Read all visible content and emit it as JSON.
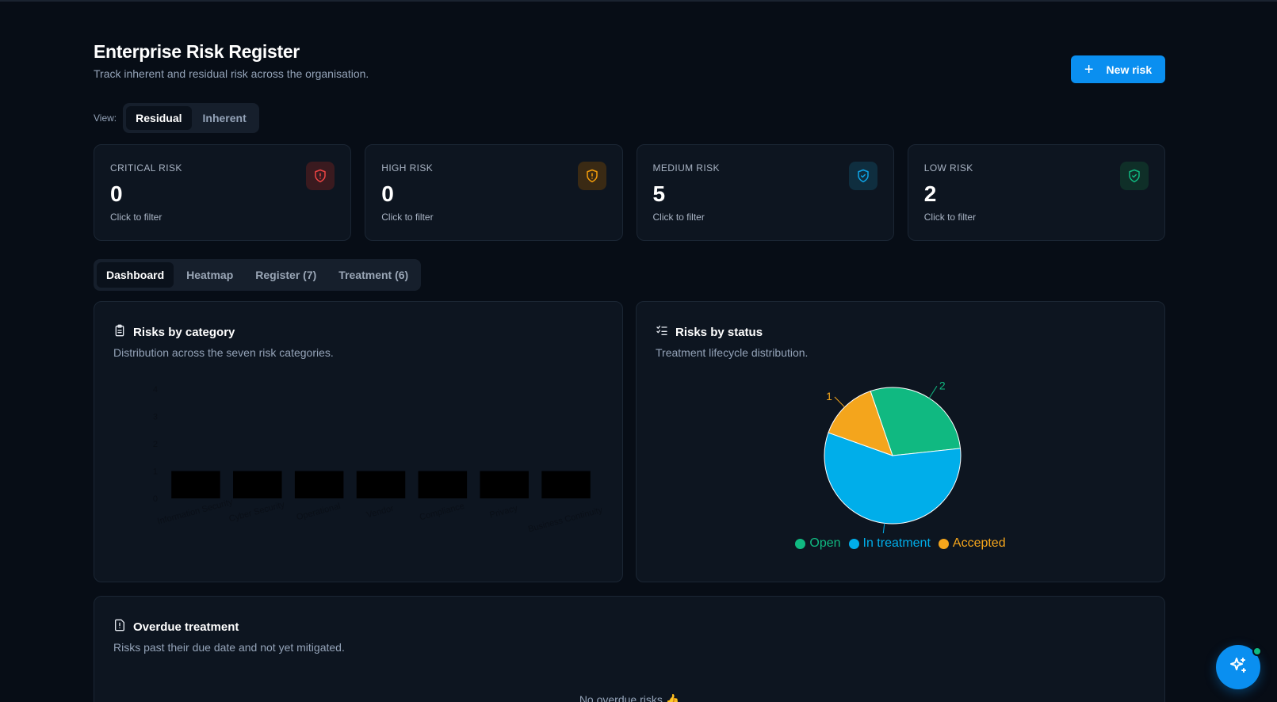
{
  "header": {
    "title": "Enterprise Risk Register",
    "subtitle": "Track inherent and residual risk across the organisation."
  },
  "actions": {
    "new_risk_label": "New risk"
  },
  "view_toggle": {
    "label": "View:",
    "options": [
      "Residual",
      "Inherent"
    ],
    "selected": "Residual"
  },
  "cards": [
    {
      "label": "CRITICAL RISK",
      "value": "0",
      "hint": "Click to filter",
      "icon": "shield-alert-icon",
      "color": "#ef4444",
      "bg": "#3a1a1f"
    },
    {
      "label": "HIGH RISK",
      "value": "0",
      "hint": "Click to filter",
      "icon": "shield-alert-icon",
      "color": "#f59e0b",
      "bg": "#3a2a14"
    },
    {
      "label": "MEDIUM RISK",
      "value": "5",
      "hint": "Click to filter",
      "icon": "shield-check-icon",
      "color": "#0ea5e9",
      "bg": "#0f2e3f"
    },
    {
      "label": "LOW RISK",
      "value": "2",
      "hint": "Click to filter",
      "icon": "shield-check-icon",
      "color": "#10b981",
      "bg": "#0f2f28"
    }
  ],
  "tabs": [
    {
      "label": "Dashboard",
      "active": true
    },
    {
      "label": "Heatmap",
      "active": false
    },
    {
      "label": "Register (7)",
      "active": false
    },
    {
      "label": "Treatment (6)",
      "active": false
    }
  ],
  "category_panel": {
    "title": "Risks by category",
    "description": "Distribution across the seven risk categories.",
    "icon": "clipboard-icon"
  },
  "status_panel": {
    "title": "Risks by status",
    "description": "Treatment lifecycle distribution.",
    "icon": "list-checks-icon"
  },
  "overdue_panel": {
    "title": "Overdue treatment",
    "description": "Risks past their due date and not yet mitigated.",
    "empty_message": "No overdue risks 👍",
    "icon": "file-alert-icon"
  },
  "assistant": {
    "icon": "sparkles-icon"
  },
  "chart_data": [
    {
      "type": "bar",
      "categories": [
        "Information Security",
        "Cyber Security",
        "Operational",
        "Vendor",
        "Compliance",
        "Privacy",
        "Business Continuity"
      ],
      "values": [
        1,
        1,
        1,
        1,
        1,
        1,
        1
      ],
      "yticks": [
        0,
        1,
        2,
        3,
        4
      ],
      "ylim": [
        0,
        4
      ],
      "bar_color": "#000000"
    },
    {
      "type": "pie",
      "labels": [
        "Open",
        "In treatment",
        "Accepted"
      ],
      "values": [
        2,
        4,
        1
      ],
      "colors": [
        "#10b981",
        "#00aeea",
        "#f4a51c"
      ]
    }
  ]
}
